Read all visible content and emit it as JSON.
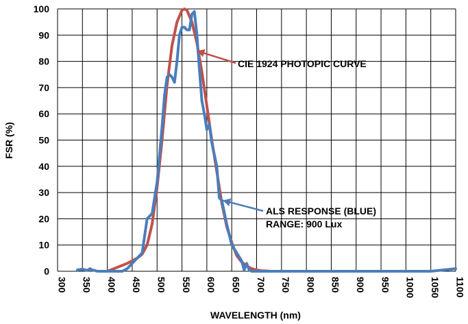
{
  "chart_data": {
    "type": "line",
    "title": "",
    "xlabel": "WAVELENGTH (nm)",
    "ylabel": "FSR (%)",
    "xlim": [
      300,
      1100
    ],
    "ylim": [
      0,
      100
    ],
    "x_ticks": [
      300,
      350,
      400,
      450,
      500,
      550,
      600,
      650,
      700,
      750,
      800,
      850,
      900,
      950,
      1000,
      1050,
      1100
    ],
    "y_ticks": [
      0,
      10,
      20,
      30,
      40,
      50,
      60,
      70,
      80,
      90,
      100
    ],
    "grid": true,
    "annotations": [
      {
        "label": "CIE 1924 PHOTOPIC CURVE",
        "target": [
          580,
          84
        ]
      },
      {
        "label": "ALS RESPONSE (BLUE)",
        "label2": "RANGE: 900 Lux",
        "target": [
          632,
          27
        ]
      }
    ],
    "series": [
      {
        "key": "cie",
        "color": "#c0504d",
        "x": [
          400,
          420,
          440,
          460,
          470,
          480,
          490,
          500,
          510,
          520,
          530,
          540,
          550,
          555,
          560,
          570,
          580,
          590,
          600,
          610,
          620,
          630,
          640,
          650,
          660,
          670,
          680,
          690,
          700,
          710,
          720,
          730
        ],
        "y": [
          0,
          1.5,
          3,
          5,
          6.5,
          10,
          18,
          32,
          50,
          71,
          86,
          95,
          99.5,
          100,
          99.5,
          95,
          87,
          76,
          63,
          50,
          38,
          26,
          17,
          11,
          6,
          3.5,
          2,
          1,
          0.5,
          0.2,
          0.1,
          0
        ]
      },
      {
        "key": "als",
        "color": "#4a7ebb",
        "x": [
          340,
          350,
          360,
          365,
          370,
          380,
          400,
          430,
          440,
          450,
          460,
          470,
          480,
          490,
          500,
          510,
          515,
          520,
          525,
          530,
          535,
          540,
          545,
          550,
          555,
          560,
          565,
          570,
          575,
          580,
          585,
          590,
          595,
          600,
          605,
          610,
          620,
          625,
          630,
          640,
          650,
          660,
          670,
          675,
          680,
          685,
          690,
          700,
          720,
          800,
          900,
          1000,
          1050,
          1075,
          1100
        ],
        "y": [
          0.5,
          0.8,
          0.3,
          1,
          0.5,
          0,
          0,
          0,
          1,
          3,
          5,
          7,
          20,
          22,
          34,
          55,
          67,
          74,
          75,
          74,
          72,
          80,
          90,
          93,
          93,
          92,
          92,
          98,
          99,
          90,
          77,
          65,
          60,
          54,
          56,
          49,
          40,
          28,
          27,
          18,
          10,
          7,
          4,
          0.5,
          3,
          0.5,
          0,
          0,
          0,
          0,
          0,
          0,
          0,
          0.5,
          1
        ]
      }
    ]
  }
}
